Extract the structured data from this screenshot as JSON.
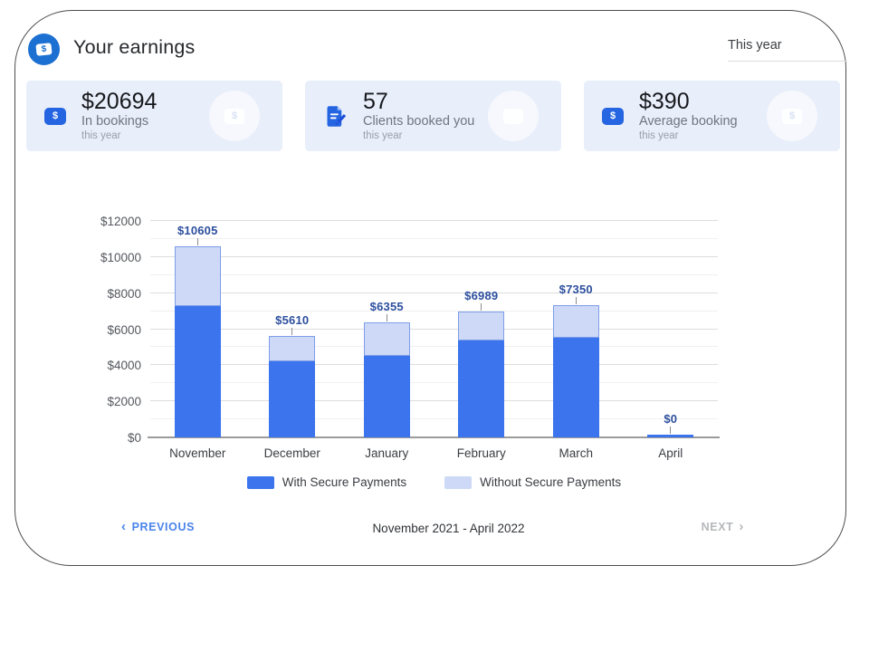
{
  "header": {
    "title": "Your earnings",
    "period_selector": "This year"
  },
  "stats": [
    {
      "icon": "money-chip-icon",
      "value": "$20694",
      "label": "In bookings",
      "sublabel": "this year"
    },
    {
      "icon": "document-edit-icon",
      "value": "57",
      "label": "Clients booked you",
      "sublabel": "this year"
    },
    {
      "icon": "money-chip-icon",
      "value": "$390",
      "label": "Average booking",
      "sublabel": "this year"
    }
  ],
  "chart_data": {
    "type": "bar",
    "stacked": true,
    "title": "",
    "xlabel": "",
    "ylabel": "",
    "categories": [
      "November",
      "December",
      "January",
      "February",
      "March",
      "April"
    ],
    "series": [
      {
        "name": "With Secure Payments",
        "color": "#3b74ec",
        "values": [
          7300,
          4200,
          4500,
          5350,
          5500,
          0
        ]
      },
      {
        "name": "Without Secure Payments",
        "color": "#cdd9f6",
        "values": [
          3305,
          1410,
          1855,
          1639,
          1850,
          0
        ]
      }
    ],
    "totals": [
      10605,
      5610,
      6355,
      6989,
      7350,
      0
    ],
    "total_labels": [
      "$10605",
      "$5610",
      "$6355",
      "$6989",
      "$7350",
      "$0"
    ],
    "ylabel_ticks": [
      "$0",
      "$2000",
      "$4000",
      "$6000",
      "$8000",
      "$10000",
      "$12000"
    ],
    "ylim": [
      0,
      12000
    ],
    "y_major_step": 2000,
    "y_minor_step": 1000,
    "grid": true,
    "legend_position": "bottom",
    "segment_border_color": "#7e9ee8",
    "label_color": "#2d4f9e"
  },
  "footer": {
    "previous_label": "PREVIOUS",
    "range_label": "November 2021 - April 2022",
    "next_label": "NEXT"
  }
}
